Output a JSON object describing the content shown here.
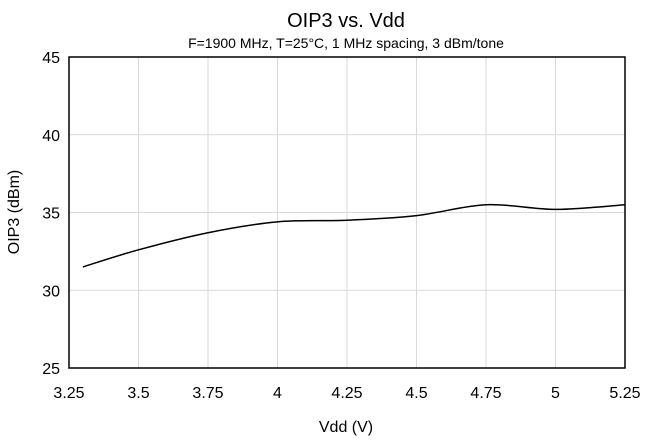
{
  "chart_data": {
    "type": "line",
    "title": "OIP3 vs. Vdd",
    "subtitle": "F=1900 MHz, T=25°C, 1 MHz spacing, 3 dBm/tone",
    "xlabel": "Vdd (V)",
    "ylabel": "OIP3 (dBm)",
    "xlim": [
      3.25,
      5.25
    ],
    "ylim": [
      25,
      45
    ],
    "x_ticks": [
      "3.25",
      "3.5",
      "3.75",
      "4",
      "4.25",
      "4.5",
      "4.75",
      "5",
      "5.25"
    ],
    "x_tick_values": [
      3.25,
      3.5,
      3.75,
      4,
      4.25,
      4.5,
      4.75,
      5,
      5.25
    ],
    "y_ticks": [
      "25",
      "30",
      "35",
      "40",
      "45"
    ],
    "y_tick_values": [
      25,
      30,
      35,
      40,
      45
    ],
    "grid": true,
    "legend": "none",
    "series": [
      {
        "x": [
          3.3,
          3.5,
          3.75,
          4.0,
          4.25,
          4.5,
          4.75,
          5.0,
          5.25
        ],
        "y": [
          31.5,
          32.6,
          33.7,
          34.4,
          34.5,
          34.8,
          35.5,
          35.2,
          35.5
        ]
      }
    ],
    "colors": {
      "line": "#000000",
      "grid": "#d9d9d9"
    }
  }
}
